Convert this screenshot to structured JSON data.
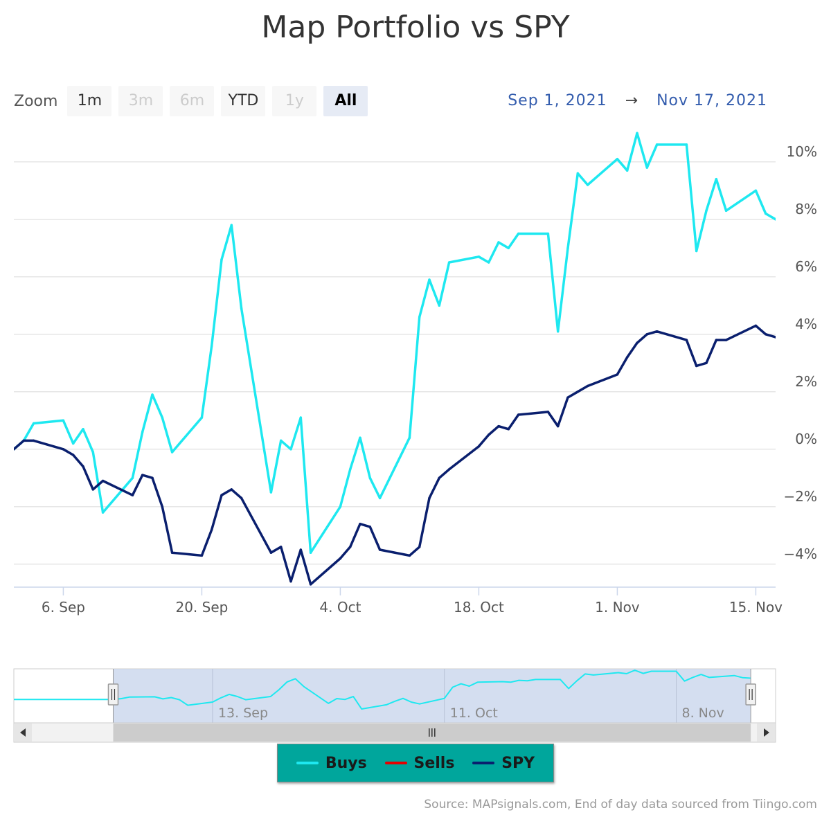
{
  "header": {
    "title": "Map Portfolio vs SPY"
  },
  "zoom": {
    "label": "Zoom",
    "buttons": [
      {
        "label": "1m",
        "state": "normal"
      },
      {
        "label": "3m",
        "state": "disabled"
      },
      {
        "label": "6m",
        "state": "disabled"
      },
      {
        "label": "YTD",
        "state": "normal"
      },
      {
        "label": "1y",
        "state": "disabled"
      },
      {
        "label": "All",
        "state": "active"
      }
    ]
  },
  "range": {
    "from": "Sep 1, 2021",
    "arrow": "→",
    "to": "Nov 17, 2021"
  },
  "legend": {
    "items": [
      {
        "label": "Buys",
        "color": "#1ee8f0"
      },
      {
        "label": "Sells",
        "color": "#e60000"
      },
      {
        "label": "SPY",
        "color": "#0a1f6e"
      }
    ]
  },
  "navigator": {
    "tick_labels": [
      {
        "label": "13. Sep",
        "date": "2021-09-13"
      },
      {
        "label": "11. Oct",
        "date": "2021-10-11"
      },
      {
        "label": "8. Nov",
        "date": "2021-11-08"
      }
    ]
  },
  "source": "Source: MAPsignals.com, End of day data sourced from Tiingo.com",
  "chart_data": {
    "type": "line",
    "x": [
      "2021-09-01",
      "2021-09-02",
      "2021-09-03",
      "2021-09-06",
      "2021-09-07",
      "2021-09-08",
      "2021-09-09",
      "2021-09-10",
      "2021-09-13",
      "2021-09-14",
      "2021-09-15",
      "2021-09-16",
      "2021-09-17",
      "2021-09-20",
      "2021-09-21",
      "2021-09-22",
      "2021-09-23",
      "2021-09-24",
      "2021-09-27",
      "2021-09-28",
      "2021-09-29",
      "2021-09-30",
      "2021-10-01",
      "2021-10-04",
      "2021-10-05",
      "2021-10-06",
      "2021-10-07",
      "2021-10-08",
      "2021-10-11",
      "2021-10-12",
      "2021-10-13",
      "2021-10-14",
      "2021-10-15",
      "2021-10-18",
      "2021-10-19",
      "2021-10-20",
      "2021-10-21",
      "2021-10-22",
      "2021-10-25",
      "2021-10-26",
      "2021-10-27",
      "2021-10-28",
      "2021-10-29",
      "2021-11-01",
      "2021-11-02",
      "2021-11-03",
      "2021-11-04",
      "2021-11-05",
      "2021-11-08",
      "2021-11-09",
      "2021-11-10",
      "2021-11-11",
      "2021-11-12",
      "2021-11-15",
      "2021-11-16",
      "2021-11-17"
    ],
    "series": [
      {
        "name": "Buys",
        "color": "#1ee8f0",
        "values": [
          0.0,
          0.3,
          0.9,
          1.0,
          0.2,
          0.7,
          -0.1,
          -2.2,
          -1.0,
          0.6,
          1.9,
          1.1,
          -0.1,
          1.1,
          3.6,
          6.6,
          7.8,
          4.9,
          -1.5,
          0.3,
          0.0,
          1.1,
          -3.6,
          -2.0,
          -0.7,
          0.4,
          -1.0,
          -1.7,
          0.4,
          4.6,
          5.9,
          5.0,
          6.5,
          6.7,
          6.5,
          7.2,
          7.0,
          7.5,
          7.5,
          4.1,
          7.0,
          9.6,
          9.2,
          10.1,
          9.7,
          11.0,
          9.8,
          10.6,
          10.6,
          6.9,
          8.3,
          9.4,
          8.3,
          9.0,
          8.2,
          8.0
        ]
      },
      {
        "name": "SPY",
        "color": "#0a1f6e",
        "values": [
          0.0,
          0.3,
          0.3,
          0.0,
          -0.2,
          -0.6,
          -1.4,
          -1.1,
          -1.6,
          -0.9,
          -1.0,
          -2.0,
          -3.6,
          -3.7,
          -2.8,
          -1.6,
          -1.4,
          -1.7,
          -3.6,
          -3.4,
          -4.6,
          -3.5,
          -4.7,
          -3.8,
          -3.4,
          -2.6,
          -2.7,
          -3.5,
          -3.7,
          -3.4,
          -1.7,
          -1.0,
          -0.7,
          0.1,
          0.5,
          0.8,
          0.7,
          1.2,
          1.3,
          0.8,
          1.8,
          2.0,
          2.2,
          2.6,
          3.2,
          3.7,
          4.0,
          4.1,
          3.8,
          2.9,
          3.0,
          3.8,
          3.8,
          4.3,
          4.0,
          3.9
        ]
      }
    ],
    "x_ticks": [
      {
        "label": "6. Sep",
        "date": "2021-09-06"
      },
      {
        "label": "20. Sep",
        "date": "2021-09-20"
      },
      {
        "label": "4. Oct",
        "date": "2021-10-04"
      },
      {
        "label": "18. Oct",
        "date": "2021-10-18"
      },
      {
        "label": "1. Nov",
        "date": "2021-11-01"
      },
      {
        "label": "15. Nov",
        "date": "2021-11-15"
      }
    ],
    "y_ticks": [
      {
        "label": "−4%",
        "value": -4
      },
      {
        "label": "−2%",
        "value": -2
      },
      {
        "label": "0%",
        "value": 0
      },
      {
        "label": "2%",
        "value": 2
      },
      {
        "label": "4%",
        "value": 4
      },
      {
        "label": "6%",
        "value": 6
      },
      {
        "label": "8%",
        "value": 8
      },
      {
        "label": "10%",
        "value": 10
      }
    ],
    "ylim": [
      -4.8,
      11.2
    ],
    "grid": true,
    "legend_position": "bottom-center"
  }
}
